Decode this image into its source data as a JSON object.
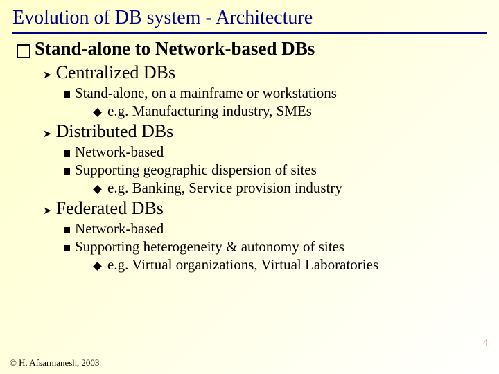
{
  "title": "Evolution of DB system - Architecture",
  "heading": "Stand-alone to Network-based DBs",
  "sections": [
    {
      "title": "Centralized DBs",
      "points": [
        {
          "text": "Stand-alone, on a mainframe or workstations",
          "sub": "e.g. Manufacturing industry, SMEs"
        }
      ]
    },
    {
      "title": "Distributed DBs",
      "points": [
        {
          "text": "Network-based"
        },
        {
          "text": "Supporting geographic dispersion of sites",
          "sub": "e.g. Banking, Service provision industry"
        }
      ]
    },
    {
      "title": "Federated DBs",
      "points": [
        {
          "text": "Network-based"
        },
        {
          "text": "Supporting heterogeneity & autonomy of sites",
          "sub": "e.g. Virtual organizations, Virtual Laboratories"
        }
      ]
    }
  ],
  "footer": "© H. Afsarmanesh, 2003",
  "page_number": "4",
  "colors": {
    "title_color": "#000080",
    "rule_color": "#000080",
    "text_color": "#000000",
    "bg_start": "#ffffcc",
    "bg_end": "#ffffff",
    "pagenum_color": "#cc6666"
  },
  "typography": {
    "title_fontsize": 28,
    "h1_fontsize": 27,
    "h2_fontsize": 26,
    "body_fontsize": 21,
    "footer_fontsize": 13,
    "font_family": "Times New Roman"
  }
}
